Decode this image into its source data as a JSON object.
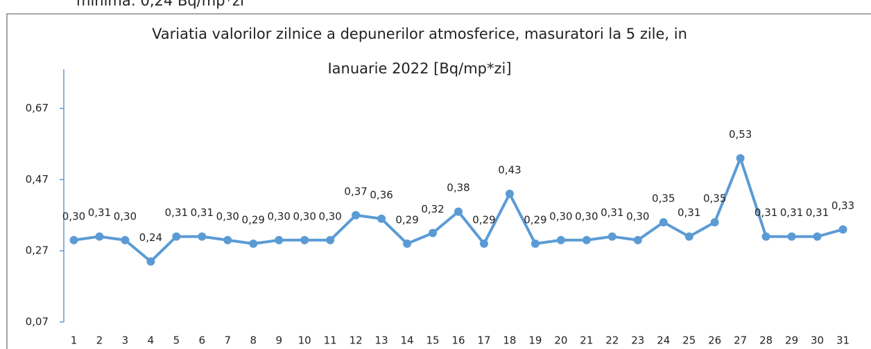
{
  "header": {
    "note": "minima: 0,24 Bq/mp*zi"
  },
  "chart_data": {
    "type": "line",
    "title": [
      "Variatia valorilor zilnice a depunerilor atmosferice, masuratori la 5 zile,  in",
      "Ianuarie 2022 [Bq/mp*zi]"
    ],
    "categories": [
      "1",
      "2",
      "3",
      "4",
      "5",
      "6",
      "7",
      "8",
      "9",
      "10",
      "11",
      "12",
      "13",
      "14",
      "15",
      "16",
      "17",
      "18",
      "19",
      "20",
      "21",
      "22",
      "23",
      "24",
      "25",
      "26",
      "27",
      "28",
      "29",
      "30",
      "31"
    ],
    "series": [
      {
        "color": "#5b9bd5",
        "values": [
          0.3,
          0.31,
          0.3,
          0.24,
          0.31,
          0.31,
          0.3,
          0.29,
          0.3,
          0.3,
          0.3,
          0.37,
          0.36,
          0.29,
          0.32,
          0.38,
          0.29,
          0.43,
          0.29,
          0.3,
          0.3,
          0.31,
          0.3,
          0.35,
          0.31,
          0.35,
          0.53,
          0.31,
          0.31,
          0.31,
          0.33
        ],
        "value_labels": [
          "0,30",
          "0,31",
          "0,30",
          "0,24",
          "0,31",
          "0,31",
          "0,30",
          "0,29",
          "0,30",
          "0,30",
          "0,30",
          "0,37",
          "0,36",
          "0,29",
          "0,32",
          "0,38",
          "0,29",
          "0,43",
          "0,29",
          "0,30",
          "0,30",
          "0,31",
          "0,30",
          "0,35",
          "0,31",
          "0,35",
          "0,53",
          "0,31",
          "0,31",
          "0,31",
          "0,33"
        ]
      }
    ],
    "ylim": [
      0.07,
      0.78
    ],
    "yticks": [
      {
        "value": 0.07,
        "label": "0,07"
      },
      {
        "value": 0.27,
        "label": "0,27"
      },
      {
        "value": 0.47,
        "label": "0,47"
      },
      {
        "value": 0.67,
        "label": "0,67"
      }
    ],
    "grid": false
  }
}
